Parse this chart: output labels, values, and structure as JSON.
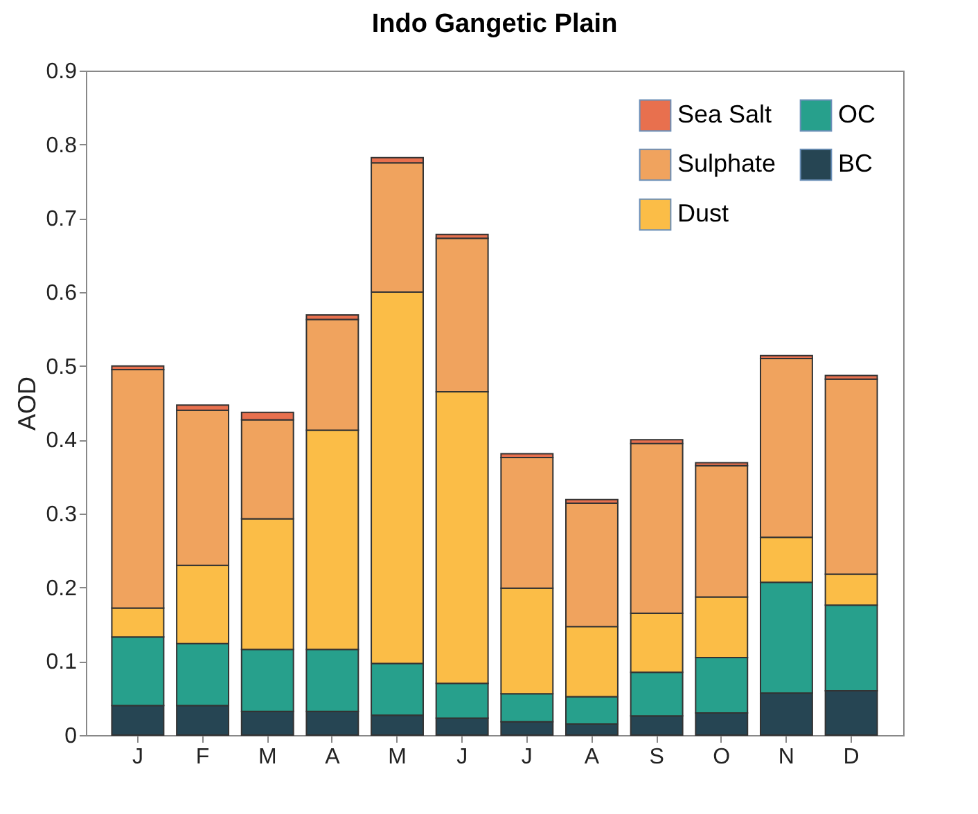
{
  "chart_data": {
    "type": "bar",
    "title": "Indo Gangetic Plain",
    "ylabel": "AOD",
    "stacked": true,
    "categories": [
      "J",
      "F",
      "M",
      "A",
      "M",
      "J",
      "J",
      "A",
      "S",
      "O",
      "N",
      "D"
    ],
    "series": [
      {
        "name": "BC",
        "color": "#264553",
        "values": [
          0.04,
          0.04,
          0.032,
          0.032,
          0.027,
          0.023,
          0.018,
          0.015,
          0.026,
          0.03,
          0.057,
          0.06
        ]
      },
      {
        "name": "OC",
        "color": "#27a08c",
        "values": [
          0.093,
          0.084,
          0.084,
          0.084,
          0.07,
          0.047,
          0.038,
          0.037,
          0.059,
          0.075,
          0.15,
          0.116
        ]
      },
      {
        "name": "Dust",
        "color": "#fbbd47",
        "values": [
          0.039,
          0.106,
          0.177,
          0.297,
          0.503,
          0.395,
          0.143,
          0.095,
          0.08,
          0.082,
          0.061,
          0.042
        ]
      },
      {
        "name": "Sulphate",
        "color": "#f0a35e",
        "values": [
          0.323,
          0.21,
          0.134,
          0.15,
          0.175,
          0.208,
          0.177,
          0.167,
          0.23,
          0.178,
          0.242,
          0.264
        ]
      },
      {
        "name": "Sea Salt",
        "color": "#e8704e",
        "values": [
          0.005,
          0.007,
          0.01,
          0.006,
          0.007,
          0.005,
          0.005,
          0.005,
          0.005,
          0.004,
          0.004,
          0.005
        ]
      }
    ],
    "ylim": [
      0,
      0.9
    ],
    "yticks": [
      0,
      0.1,
      0.2,
      0.3,
      0.4,
      0.5,
      0.6,
      0.7,
      0.8,
      0.9
    ],
    "grid": false,
    "legend": "top right"
  }
}
